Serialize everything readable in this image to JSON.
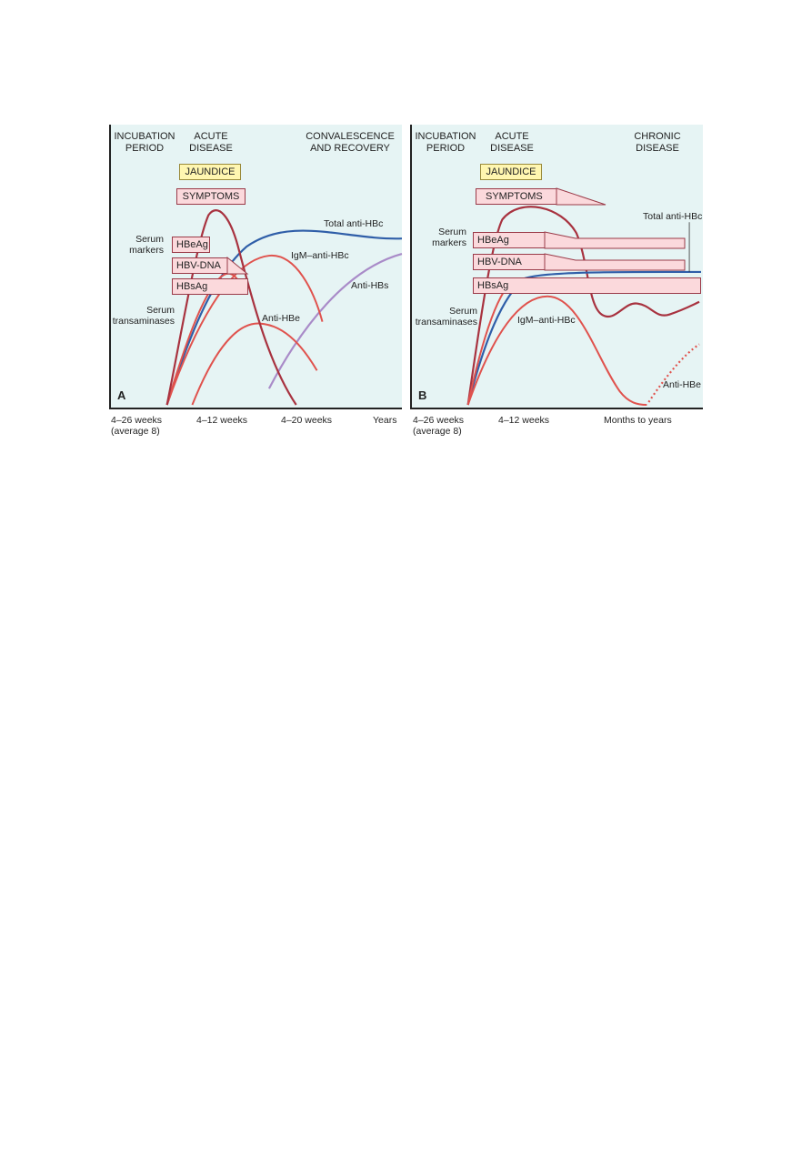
{
  "panel_a": {
    "letter": "A",
    "headers": [
      "INCUBATION\nPERIOD",
      "ACUTE\nDISEASE",
      "CONVALESCENCE\nAND RECOVERY"
    ],
    "jaundice": "JAUNDICE",
    "symptoms": "SYMPTOMS",
    "serum_markers": "Serum\nmarkers",
    "serum_transaminases": "Serum\ntransaminases",
    "markers": [
      "HBeAg",
      "HBV-DNA",
      "HBsAg"
    ],
    "curve_labels": {
      "total_anti_hbc": "Total anti-HBc",
      "igm_anti_hbc": "IgM–anti-HBc",
      "anti_hbs": "Anti-HBs",
      "anti_hbe": "Anti-HBe"
    },
    "x_ticks": [
      "4–26 weeks\n(average 8)",
      "4–12 weeks",
      "4–20 weeks",
      "Years"
    ]
  },
  "panel_b": {
    "letter": "B",
    "headers": [
      "INCUBATION\nPERIOD",
      "ACUTE\nDISEASE",
      "CHRONIC\nDISEASE"
    ],
    "jaundice": "JAUNDICE",
    "symptoms": "SYMPTOMS",
    "serum_markers": "Serum\nmarkers",
    "serum_transaminases": "Serum\ntransaminases",
    "markers": [
      "HBeAg",
      "HBV-DNA",
      "HBsAg"
    ],
    "curve_labels": {
      "total_anti_hbc": "Total anti-HBc",
      "igm_anti_hbc": "IgM–anti-HBc",
      "anti_hbe": "Anti-HBe"
    },
    "x_ticks": [
      "4–26 weeks\n(average 8)",
      "4–12 weeks",
      "Months to years"
    ]
  },
  "colors": {
    "panel_bg": "#e6f4f4",
    "transaminases": "#a8323f",
    "markers_red": "#e0524d",
    "total_anti_hbc": "#2f5ea8",
    "anti_hbs": "#a98bc8",
    "jaundice_fill": "#fff6b0",
    "marker_box_fill": "#fbd9dc"
  }
}
